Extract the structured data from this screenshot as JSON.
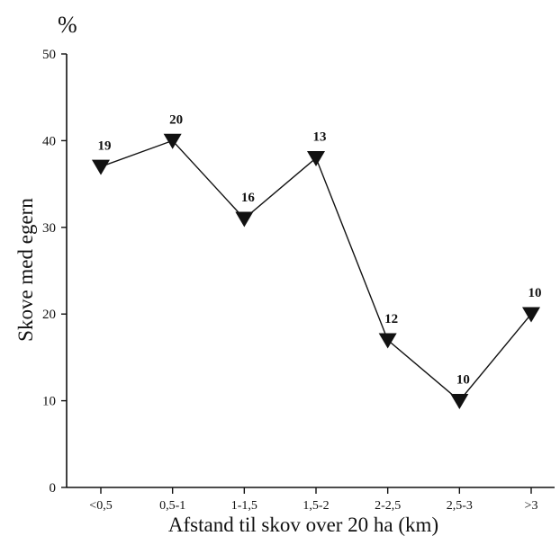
{
  "chart_data": {
    "type": "line",
    "title": "",
    "xlabel": "Afstand til skov over 20 ha (km)",
    "ylabel": "Skove med egern",
    "y_unit": "%",
    "categories": [
      "<0,5",
      "0,5-1",
      "1-1,5",
      "1,5-2",
      "2-2,5",
      "2,5-3",
      ">3"
    ],
    "series": [
      {
        "values": [
          37,
          40,
          31,
          38,
          17,
          10,
          20
        ],
        "sample_sizes": [
          "19",
          "20",
          "16",
          "13",
          "12",
          "10",
          "10"
        ],
        "marker": "triangle-down"
      }
    ],
    "ylim": [
      0,
      50
    ],
    "yticks": [
      0,
      10,
      20,
      30,
      40,
      50
    ],
    "grid": false,
    "legend": "none",
    "colors": {
      "line": "#111111",
      "marker": "#111111",
      "axis": "#111111"
    }
  }
}
